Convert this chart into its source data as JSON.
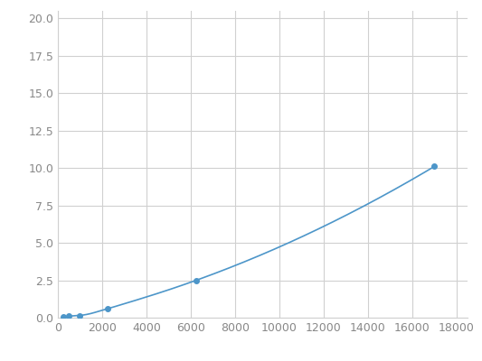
{
  "x": [
    250,
    500,
    1000,
    2250,
    6250,
    17000
  ],
  "y": [
    0.05,
    0.1,
    0.15,
    0.6,
    2.5,
    10.1
  ],
  "line_color": "#4d96c9",
  "marker_color": "#4d96c9",
  "marker_size": 4,
  "xlim": [
    0,
    18500
  ],
  "ylim": [
    0,
    20.5
  ],
  "xticks": [
    0,
    2000,
    4000,
    6000,
    8000,
    10000,
    12000,
    14000,
    16000,
    18000
  ],
  "yticks": [
    0.0,
    2.5,
    5.0,
    7.5,
    10.0,
    12.5,
    15.0,
    17.5,
    20.0
  ],
  "grid_color": "#d0d0d0",
  "background_color": "#ffffff",
  "figure_background": "#ffffff",
  "tick_color": "#888888",
  "tick_fontsize": 9
}
